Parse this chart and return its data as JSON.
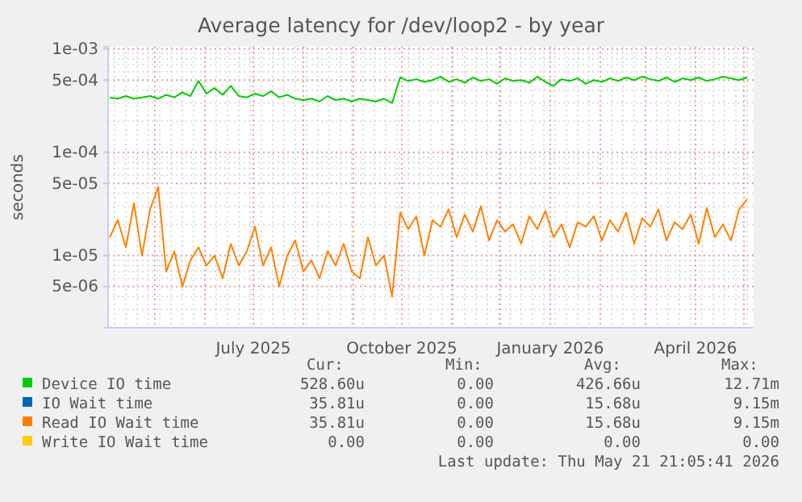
{
  "chart_data": {
    "type": "line",
    "title": "Average latency for /dev/loop2 - by year",
    "ylabel": "seconds",
    "log": true,
    "grid": true,
    "legend": "bottom",
    "x": [
      "2025-04-03",
      "2025-04-08",
      "2025-04-13",
      "2025-04-18",
      "2025-04-23",
      "2025-04-28",
      "2025-05-03",
      "2025-05-08",
      "2025-05-13",
      "2025-05-18",
      "2025-05-23",
      "2025-05-28",
      "2025-06-02",
      "2025-06-07",
      "2025-06-12",
      "2025-06-17",
      "2025-06-22",
      "2025-06-27",
      "2025-07-02",
      "2025-07-07",
      "2025-07-12",
      "2025-07-17",
      "2025-07-22",
      "2025-07-27",
      "2025-08-01",
      "2025-08-06",
      "2025-08-11",
      "2025-08-16",
      "2025-08-21",
      "2025-08-26",
      "2025-08-31",
      "2025-09-05",
      "2025-09-10",
      "2025-09-15",
      "2025-09-20",
      "2025-09-25",
      "2025-09-30",
      "2025-10-05",
      "2025-10-10",
      "2025-10-15",
      "2025-10-20",
      "2025-10-25",
      "2025-10-30",
      "2025-11-04",
      "2025-11-09",
      "2025-11-14",
      "2025-11-19",
      "2025-11-24",
      "2025-11-29",
      "2025-12-04",
      "2025-12-09",
      "2025-12-14",
      "2025-12-19",
      "2025-12-24",
      "2025-12-29",
      "2026-01-03",
      "2026-01-08",
      "2026-01-13",
      "2026-01-18",
      "2026-01-23",
      "2026-01-28",
      "2026-02-02",
      "2026-02-07",
      "2026-02-12",
      "2026-02-17",
      "2026-02-22",
      "2026-02-27",
      "2026-03-04",
      "2026-03-09",
      "2026-03-14",
      "2026-03-19",
      "2026-03-24",
      "2026-03-29",
      "2026-04-03",
      "2026-04-08",
      "2026-04-13",
      "2026-04-18",
      "2026-04-23",
      "2026-04-28",
      "2026-05-03"
    ],
    "xlim": [
      "2025-04-02",
      "2026-05-07"
    ],
    "xticks": [
      {
        "value": "2025-07-01",
        "label": "July 2025"
      },
      {
        "value": "2025-10-01",
        "label": "October 2025"
      },
      {
        "value": "2026-01-01",
        "label": "January 2026"
      },
      {
        "value": "2026-04-01",
        "label": "April 2026"
      }
    ],
    "ylim": [
      2e-06,
      0.00105
    ],
    "yticks": [
      {
        "value": 5e-06,
        "label": "5e-06"
      },
      {
        "value": 1e-05,
        "label": "1e-05"
      },
      {
        "value": 5e-05,
        "label": "5e-05"
      },
      {
        "value": 0.0001,
        "label": "1e-04"
      },
      {
        "value": 0.0005,
        "label": "5e-04"
      },
      {
        "value": 0.001,
        "label": "1e-03"
      }
    ],
    "series": [
      {
        "name": "Device IO time",
        "color": "#00cc00",
        "values": [
          0.00034,
          0.00033,
          0.00035,
          0.00033,
          0.00034,
          0.00035,
          0.00033,
          0.00036,
          0.00034,
          0.00038,
          0.00035,
          0.00049,
          0.00037,
          0.00042,
          0.00036,
          0.00044,
          0.00035,
          0.00034,
          0.00037,
          0.00035,
          0.00039,
          0.00034,
          0.00036,
          0.00033,
          0.00032,
          0.00033,
          0.00031,
          0.00035,
          0.00032,
          0.00033,
          0.00031,
          0.00033,
          0.00032,
          0.00031,
          0.00033,
          0.0003,
          0.00053,
          0.00049,
          0.00051,
          0.00048,
          0.0005,
          0.00054,
          0.00048,
          0.00051,
          0.00047,
          0.00053,
          0.00049,
          0.00051,
          0.00046,
          0.00052,
          0.00049,
          0.0005,
          0.00047,
          0.00054,
          0.00048,
          0.00044,
          0.00051,
          0.00049,
          0.00052,
          0.00046,
          0.0005,
          0.00048,
          0.00052,
          0.00049,
          0.00053,
          0.0005,
          0.00054,
          0.00051,
          0.00049,
          0.00053,
          0.00048,
          0.00052,
          0.0005,
          0.00053,
          0.00049,
          0.00051,
          0.00054,
          0.00052,
          0.0005,
          0.00053
        ]
      },
      {
        "name": "IO Wait time",
        "color": "#0066b3",
        "values": [
          null,
          null,
          null,
          null,
          null,
          null,
          null,
          null,
          null,
          null,
          null,
          null,
          null,
          null,
          null,
          null,
          null,
          null,
          null,
          null,
          null,
          null,
          null,
          null,
          null,
          null,
          null,
          null,
          null,
          null,
          null,
          null,
          null,
          null,
          null,
          null,
          null,
          null,
          null,
          null,
          null,
          null,
          null,
          null,
          null,
          null,
          null,
          null,
          null,
          null,
          null,
          null,
          null,
          null,
          null,
          null,
          null,
          null,
          null,
          null,
          null,
          null,
          null,
          null,
          null,
          null,
          null,
          null,
          null,
          null,
          null,
          null,
          null,
          null,
          null,
          null,
          null,
          null,
          null,
          null
        ]
      },
      {
        "name": "Read IO Wait time",
        "color": "#ff8000",
        "values": [
          1.5e-05,
          2.2e-05,
          1.2e-05,
          3.2e-05,
          1e-05,
          2.8e-05,
          4.6e-05,
          7e-06,
          1.1e-05,
          5e-06,
          9e-06,
          1.2e-05,
          8e-06,
          1e-05,
          6e-06,
          1.3e-05,
          8e-06,
          1.1e-05,
          1.9e-05,
          8e-06,
          1.2e-05,
          5e-06,
          1e-05,
          1.4e-05,
          7e-06,
          9e-06,
          6e-06,
          1.1e-05,
          8e-06,
          1.3e-05,
          7e-06,
          6e-06,
          1.5e-05,
          8e-06,
          1e-05,
          4e-06,
          2.6e-05,
          1.8e-05,
          2.4e-05,
          1e-05,
          2.2e-05,
          1.9e-05,
          2.8e-05,
          1.5e-05,
          2.5e-05,
          1.7e-05,
          3e-05,
          1.4e-05,
          2.2e-05,
          1.7e-05,
          2e-05,
          1.3e-05,
          2.4e-05,
          1.8e-05,
          2.7e-05,
          1.5e-05,
          2e-05,
          1.2e-05,
          2.1e-05,
          1.9e-05,
          2.4e-05,
          1.4e-05,
          2.2e-05,
          1.7e-05,
          2.6e-05,
          1.3e-05,
          2.3e-05,
          1.9e-05,
          2.8e-05,
          1.4e-05,
          2.1e-05,
          1.8e-05,
          2.5e-05,
          1.3e-05,
          2.9e-05,
          1.5e-05,
          2e-05,
          1.4e-05,
          2.8e-05,
          3.5e-05
        ]
      },
      {
        "name": "Write IO Wait time",
        "color": "#ffcc00",
        "values": [
          null,
          null,
          null,
          null,
          null,
          null,
          null,
          null,
          null,
          null,
          null,
          null,
          null,
          null,
          null,
          null,
          null,
          null,
          null,
          null,
          null,
          null,
          null,
          null,
          null,
          null,
          null,
          null,
          null,
          null,
          null,
          null,
          null,
          null,
          null,
          null,
          null,
          null,
          null,
          null,
          null,
          null,
          null,
          null,
          null,
          null,
          null,
          null,
          null,
          null,
          null,
          null,
          null,
          null,
          null,
          null,
          null,
          null,
          null,
          null,
          null,
          null,
          null,
          null,
          null,
          null,
          null,
          null,
          null,
          null,
          null,
          null,
          null,
          null,
          null,
          null,
          null,
          null,
          null,
          null
        ]
      }
    ],
    "annotations": [
      "Cur:",
      "Min:",
      "Avg:",
      "Max:",
      "528.60u",
      "0.00",
      "426.66u",
      "12.71m",
      "35.81u",
      "0.00",
      "15.68u",
      "9.15m",
      "35.81u",
      "0.00",
      "15.68u",
      "9.15m",
      "0.00",
      "0.00",
      "0.00",
      "0.00",
      "Last update: Thu May 21 21:05:41 2026"
    ]
  }
}
